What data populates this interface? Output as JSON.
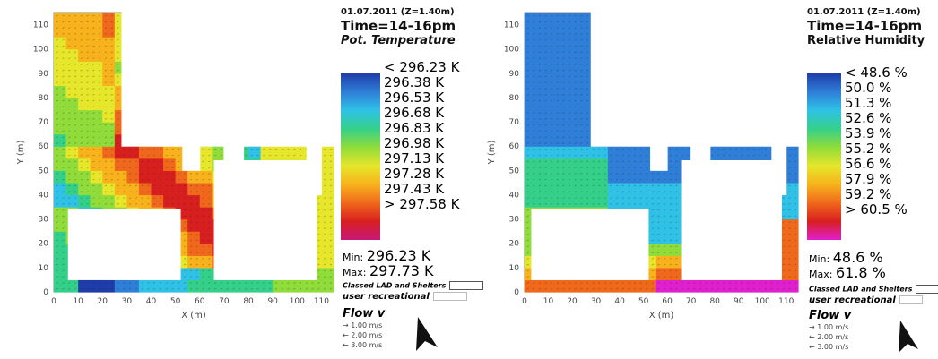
{
  "panels": [
    {
      "date_label": "01.07.2011 (Z=1.40m)",
      "time_label": "Time=14-16pm",
      "variable_label": "Pot. Temperature",
      "legend_ticks": [
        "< 296.23 K",
        "296.38 K",
        "296.53 K",
        "296.68 K",
        "296.83 K",
        "296.98 K",
        "297.13 K",
        "297.28 K",
        "297.43 K",
        "> 297.58 K"
      ],
      "min_label": "Min:",
      "min_value": "296.23 K",
      "max_label": "Max:",
      "max_value": "297.73 K",
      "buildings_label": "Classed LAD and Shelters",
      "recreational_label": "user recreational",
      "flow_title": "Flow v",
      "flow_speeds": [
        "1.00 m/s",
        "2.00 m/s",
        "3.00 m/s"
      ],
      "ylabel": "Y (m)",
      "xlabel": "X (m)",
      "x_ticks": [
        "0",
        "10",
        "20",
        "30",
        "40",
        "50",
        "60",
        "70",
        "80",
        "90",
        "100",
        "110"
      ],
      "y_ticks": [
        "0",
        "10",
        "20",
        "30",
        "40",
        "50",
        "60",
        "70",
        "80",
        "90",
        "100",
        "110"
      ]
    },
    {
      "date_label": "01.07.2011 (Z=1.40m)",
      "time_label": "Time=14-16pm",
      "variable_label": "Relative Humidity",
      "legend_ticks": [
        "< 48.6 %",
        "50.0 %",
        "51.3 %",
        "52.6 %",
        "53.9 %",
        "55.2 %",
        "56.6 %",
        "57.9 %",
        "59.2 %",
        "> 60.5 %"
      ],
      "min_label": "Min:",
      "min_value": "48.6 %",
      "max_label": "Max:",
      "max_value": "61.8 %",
      "buildings_label": "Classed LAD and Shelters",
      "recreational_label": "user recreational",
      "flow_title": "Flow v",
      "flow_speeds": [
        "1.00 m/s",
        "2.00 m/s",
        "3.00 m/s"
      ],
      "ylabel": "Y (m)",
      "xlabel": "X (m)",
      "x_ticks": [
        "0",
        "10",
        "20",
        "30",
        "40",
        "50",
        "60",
        "70",
        "80",
        "90",
        "100",
        "110"
      ],
      "y_ticks": [
        "0",
        "10",
        "20",
        "30",
        "40",
        "50",
        "60",
        "70",
        "80",
        "90",
        "100",
        "110"
      ]
    }
  ],
  "chart_data": [
    {
      "type": "heatmap",
      "title": "Pot. Temperature",
      "subtitle": "01.07.2011 (Z=1.40m) Time=14-16pm",
      "xlabel": "X (m)",
      "ylabel": "Y (m)",
      "xlim": [
        0,
        115
      ],
      "ylim": [
        0,
        115
      ],
      "units": "K",
      "color_scale": [
        "#1f3da8",
        "#2f7ed8",
        "#2fc2e6",
        "#34d08a",
        "#8fdc3a",
        "#e6e62b",
        "#f7b21c",
        "#f0681c",
        "#d81f1f",
        "#c8187a"
      ],
      "levels": [
        296.23,
        296.38,
        296.53,
        296.68,
        296.83,
        296.98,
        297.13,
        297.28,
        297.43,
        297.58
      ],
      "min": 296.23,
      "max": 297.73,
      "grid": false
    },
    {
      "type": "heatmap",
      "title": "Relative Humidity",
      "subtitle": "01.07.2011 (Z=1.40m) Time=14-16pm",
      "xlabel": "X (m)",
      "ylabel": "Y (m)",
      "xlim": [
        0,
        115
      ],
      "ylim": [
        0,
        115
      ],
      "units": "%",
      "color_scale": [
        "#1f3da8",
        "#2f7ed8",
        "#2fc2e6",
        "#34d08a",
        "#8fdc3a",
        "#e6e62b",
        "#f7b21c",
        "#f0681c",
        "#d81f1f",
        "#e01fcf"
      ],
      "levels": [
        48.6,
        50.0,
        51.3,
        52.6,
        53.9,
        55.2,
        56.6,
        57.9,
        59.2,
        60.5
      ],
      "min": 48.6,
      "max": 61.8,
      "grid": false
    }
  ]
}
